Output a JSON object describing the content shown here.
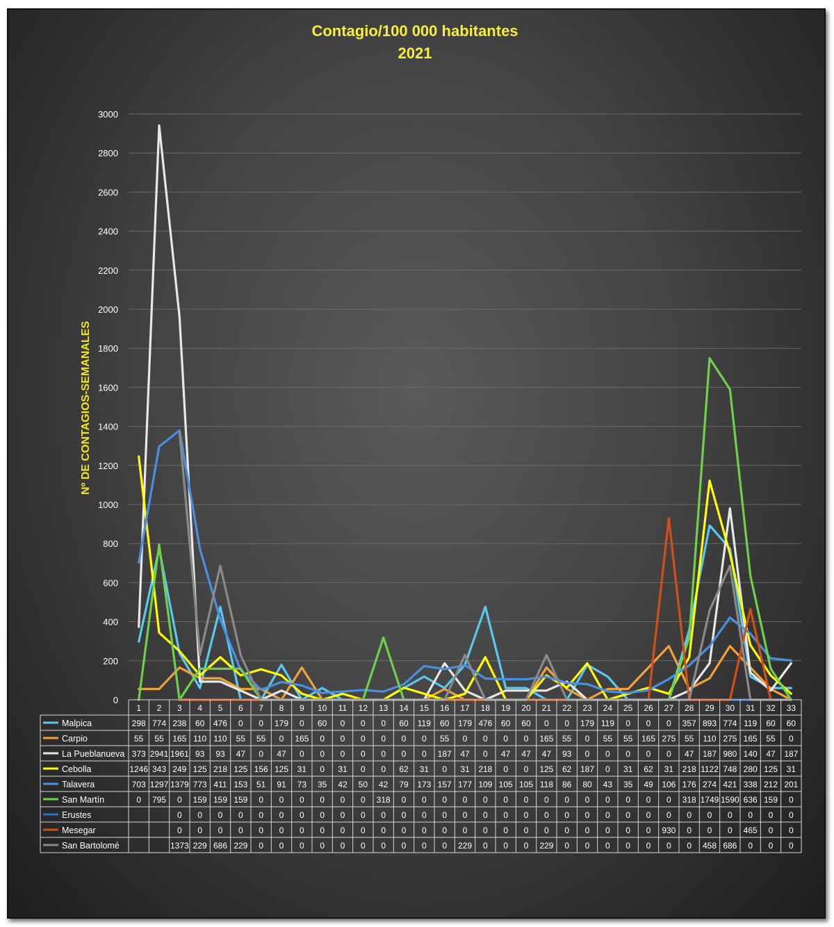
{
  "chart_data": {
    "type": "line",
    "title": "Contagio/100 000 habitantes",
    "subtitle": "2021",
    "ylabel": "Nº DE CONTAGIOS-SEMANALES",
    "ylim": [
      0,
      3000
    ],
    "yticks": [
      0,
      200,
      400,
      600,
      800,
      1000,
      1200,
      1400,
      1600,
      1800,
      2000,
      2200,
      2400,
      2600,
      2800,
      3000
    ],
    "grid": true,
    "categories": [
      "1",
      "2",
      "3",
      "4",
      "5",
      "6",
      "7",
      "8",
      "9",
      "10",
      "11",
      "12",
      "13",
      "14",
      "15",
      "16",
      "17",
      "18",
      "19",
      "20",
      "21",
      "22",
      "23",
      "24",
      "25",
      "26",
      "27",
      "28",
      "29",
      "30",
      "31",
      "32",
      "33"
    ],
    "series": [
      {
        "name": "Malpica",
        "color": "#5bc8f0",
        "values": [
          298,
          774,
          238,
          60,
          476,
          0,
          0,
          179,
          0,
          60,
          0,
          0,
          0,
          60,
          119,
          60,
          179,
          476,
          60,
          60,
          0,
          0,
          179,
          119,
          0,
          0,
          0,
          357,
          893,
          774,
          119,
          60,
          60
        ]
      },
      {
        "name": "Carpio",
        "color": "#f2a23a",
        "values": [
          55,
          55,
          165,
          110,
          110,
          55,
          55,
          0,
          165,
          0,
          0,
          0,
          0,
          0,
          0,
          55,
          0,
          0,
          0,
          0,
          165,
          55,
          0,
          55,
          55,
          165,
          275,
          55,
          110,
          275,
          165,
          55,
          0
        ]
      },
      {
        "name": "La Pueblanueva",
        "color": "#e8e8e8",
        "values": [
          373,
          2941,
          1961,
          93,
          93,
          47,
          0,
          47,
          0,
          0,
          0,
          0,
          0,
          0,
          0,
          187,
          47,
          0,
          47,
          47,
          47,
          93,
          0,
          0,
          0,
          0,
          0,
          47,
          187,
          980,
          140,
          47,
          187
        ]
      },
      {
        "name": "Cebolla",
        "color": "#ffff00",
        "values": [
          1246,
          343,
          249,
          125,
          218,
          125,
          156,
          125,
          31,
          0,
          31,
          0,
          0,
          62,
          31,
          0,
          31,
          218,
          0,
          0,
          125,
          62,
          187,
          0,
          31,
          62,
          31,
          218,
          1122,
          748,
          280,
          125,
          31
        ]
      },
      {
        "name": "Talavera",
        "color": "#4a90e2",
        "values": [
          703,
          1297,
          1379,
          773,
          411,
          153,
          51,
          91,
          73,
          35,
          42,
          50,
          42,
          79,
          173,
          157,
          177,
          109,
          105,
          105,
          118,
          86,
          80,
          43,
          35,
          49,
          106,
          176,
          274,
          421,
          338,
          212,
          201
        ]
      },
      {
        "name": "San Martín",
        "color": "#6fd14a",
        "values": [
          0,
          795,
          0,
          159,
          159,
          159,
          0,
          0,
          0,
          0,
          0,
          0,
          318,
          0,
          0,
          0,
          0,
          0,
          0,
          0,
          0,
          0,
          0,
          0,
          0,
          0,
          0,
          318,
          1749,
          1590,
          636,
          159,
          0
        ]
      },
      {
        "name": "Erustes",
        "color": "#2f6fc4",
        "values": [
          null,
          null,
          0,
          0,
          0,
          0,
          0,
          0,
          0,
          0,
          0,
          0,
          0,
          0,
          0,
          0,
          0,
          0,
          0,
          0,
          0,
          0,
          0,
          0,
          0,
          0,
          0,
          0,
          0,
          0,
          0,
          0,
          0
        ]
      },
      {
        "name": "Mesegar",
        "color": "#d0501a",
        "values": [
          null,
          null,
          0,
          0,
          0,
          0,
          0,
          0,
          0,
          0,
          0,
          0,
          0,
          0,
          0,
          0,
          0,
          0,
          0,
          0,
          0,
          0,
          0,
          0,
          0,
          0,
          930,
          0,
          0,
          0,
          465,
          0,
          0
        ]
      },
      {
        "name": "San Bartolomé",
        "color": "#8a8a8a",
        "values": [
          null,
          null,
          1373,
          229,
          686,
          229,
          0,
          0,
          0,
          0,
          0,
          0,
          0,
          0,
          0,
          0,
          229,
          0,
          0,
          0,
          229,
          0,
          0,
          0,
          0,
          0,
          0,
          0,
          458,
          686,
          0,
          0,
          0
        ]
      }
    ]
  }
}
